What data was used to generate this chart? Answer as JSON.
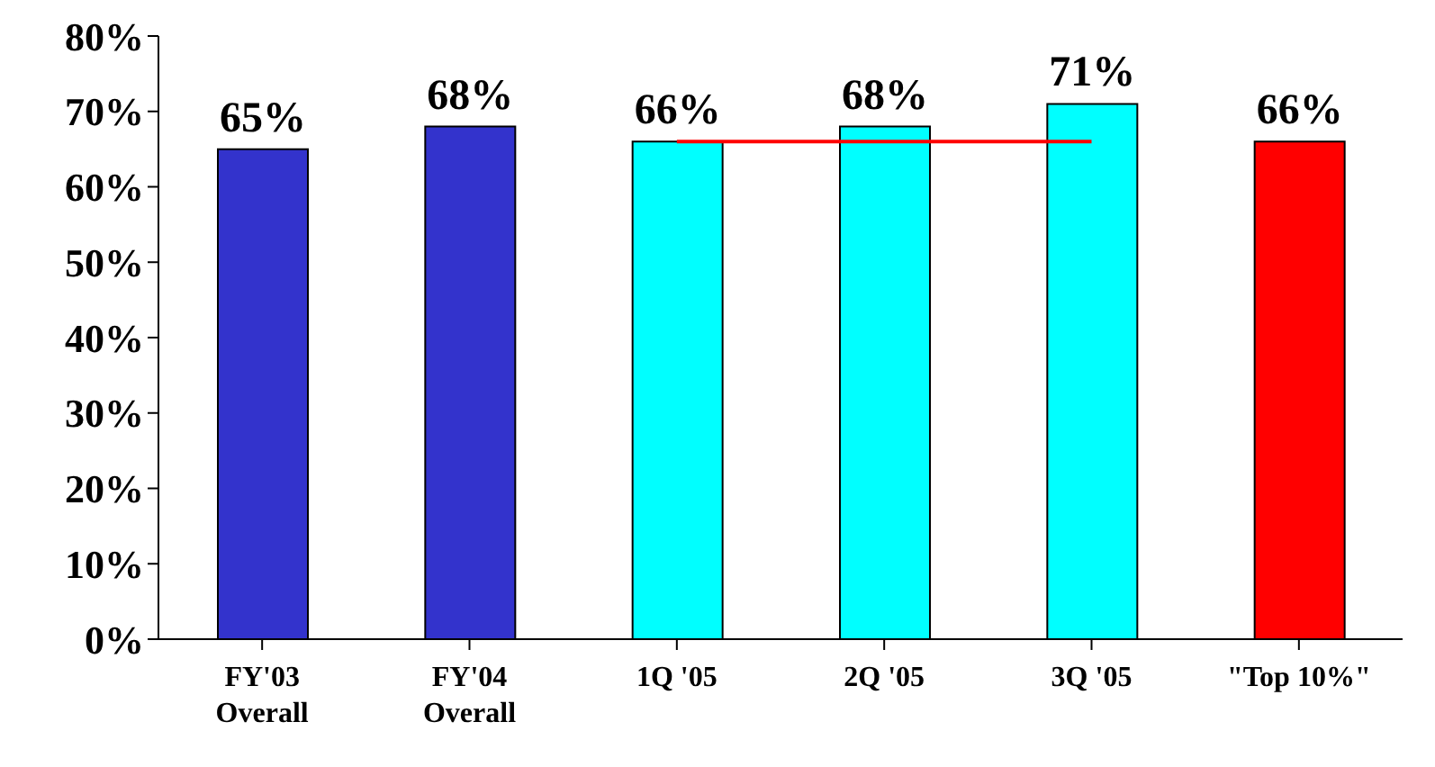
{
  "chart_data": {
    "type": "bar",
    "categories": [
      "FY'03\nOverall",
      "FY'04\nOverall",
      "1Q '05",
      "2Q '05",
      "3Q '05",
      "\"Top 10%\""
    ],
    "series": [
      {
        "values": [
          65,
          68,
          66,
          68,
          71,
          66
        ],
        "colors": [
          "#3333cc",
          "#3333cc",
          "#00ffff",
          "#00ffff",
          "#00ffff",
          "#ff0000"
        ],
        "value_labels": [
          "65%",
          "68%",
          "66%",
          "68%",
          "71%",
          "66%"
        ]
      },
      {
        "type": "line",
        "color": "#ff0000",
        "values": [
          null,
          null,
          66,
          66,
          66,
          null
        ]
      }
    ],
    "ylim": [
      0,
      80
    ],
    "yticks": [
      {
        "value": 0,
        "label": "0%"
      },
      {
        "value": 10,
        "label": "10%"
      },
      {
        "value": 20,
        "label": "20%"
      },
      {
        "value": 30,
        "label": "30%"
      },
      {
        "value": 40,
        "label": "40%"
      },
      {
        "value": 50,
        "label": "50%"
      },
      {
        "value": 60,
        "label": "60%"
      },
      {
        "value": 70,
        "label": "70%"
      },
      {
        "value": 80,
        "label": "80%"
      }
    ],
    "grid": false
  }
}
